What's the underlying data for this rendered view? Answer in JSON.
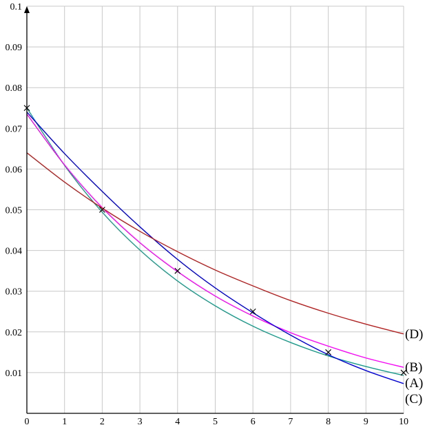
{
  "chart_data": {
    "type": "line",
    "x": [
      0,
      1,
      2,
      3,
      4,
      5,
      6,
      7,
      8,
      9,
      10
    ],
    "series": [
      {
        "name": "(A)",
        "color": "#1a9a8a",
        "values": [
          0.075,
          0.0609,
          0.0494,
          0.0401,
          0.0325,
          0.0264,
          0.0214,
          0.0174,
          0.0141,
          0.0115,
          0.0093
        ]
      },
      {
        "name": "(B)",
        "color": "#ff00ff",
        "values": [
          0.0735,
          0.061,
          0.0505,
          0.0419,
          0.0348,
          0.0288,
          0.0239,
          0.0198,
          0.0165,
          0.0136,
          0.0113
        ]
      },
      {
        "name": "(C)",
        "color": "#0000dd",
        "values": [
          0.074,
          0.0638,
          0.0545,
          0.0458,
          0.0378,
          0.0308,
          0.0247,
          0.0192,
          0.0144,
          0.0105,
          0.0073
        ]
      },
      {
        "name": "(D)",
        "color": "#b22222",
        "values": [
          0.064,
          0.0568,
          0.0504,
          0.0447,
          0.0397,
          0.0352,
          0.0313,
          0.0277,
          0.0246,
          0.0219,
          0.0195
        ]
      }
    ],
    "points": {
      "x": [
        0,
        2,
        4,
        6,
        8,
        10
      ],
      "values": [
        0.075,
        0.05,
        0.035,
        0.025,
        0.015,
        0.01
      ],
      "color": "#000000"
    },
    "xlim": [
      0,
      10
    ],
    "ylim": [
      0,
      0.1
    ],
    "xticks": [
      0,
      1,
      2,
      3,
      4,
      5,
      6,
      7,
      8,
      9,
      10
    ],
    "yticks": [
      0.01,
      0.02,
      0.03,
      0.04,
      0.05,
      0.06,
      0.07,
      0.08,
      0.09,
      0.1
    ],
    "grid": true
  }
}
